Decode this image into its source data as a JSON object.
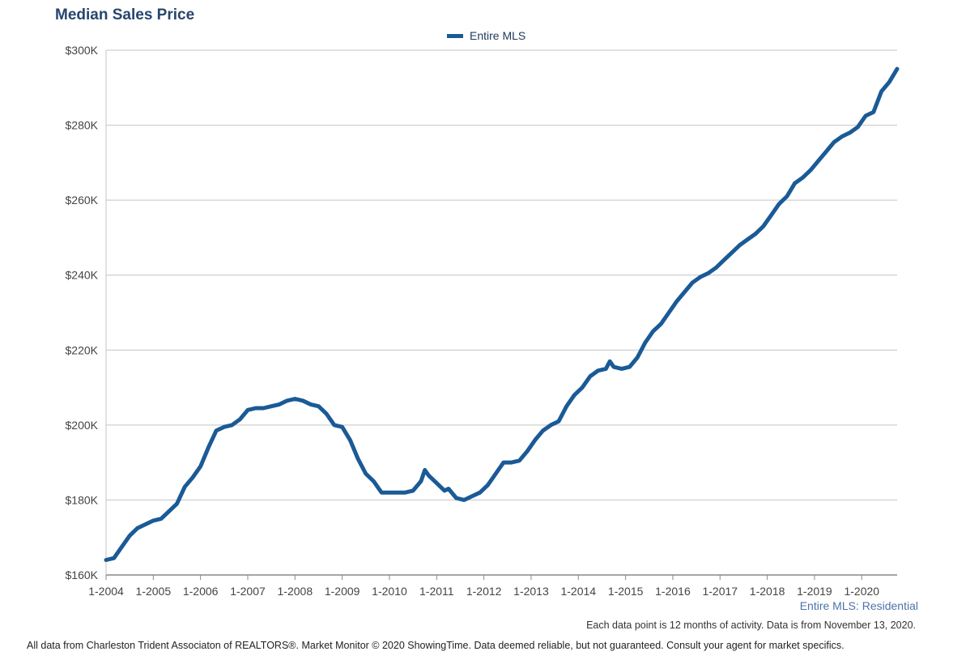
{
  "title": "Median Sales Price",
  "legend_label": "Entire MLS",
  "subtitle": "Entire MLS: Residential",
  "note": "Each data point is 12 months of activity. Data is from November 13, 2020.",
  "footer": "All data from Charleston Trident Associaton of REALTORS®. Market Monitor © 2020 ShowingTime. Data deemed reliable, but not guaranteed. Consult your agent for market specifics.",
  "colors": {
    "series": "#1a5a96",
    "grid": "#c4c4c4",
    "axis": "#888888",
    "tick_text": "#444444",
    "title": "#27466e"
  },
  "chart_data": {
    "type": "line",
    "ylim": [
      160,
      300
    ],
    "y_unit": "K USD",
    "y_ticks": [
      160,
      180,
      200,
      220,
      240,
      260,
      280,
      300
    ],
    "y_tick_labels": [
      "$160K",
      "$180K",
      "$200K",
      "$220K",
      "$240K",
      "$260K",
      "$280K",
      "$300K"
    ],
    "x_tick_labels": [
      "1-2004",
      "1-2005",
      "1-2006",
      "1-2007",
      "1-2008",
      "1-2009",
      "1-2010",
      "1-2011",
      "1-2012",
      "1-2013",
      "1-2014",
      "1-2015",
      "1-2016",
      "1-2017",
      "1-2018",
      "1-2019",
      "1-2020"
    ],
    "x_start": "1-2004",
    "x_end": "10-2020",
    "grid": true,
    "legend_position": "top-center",
    "series": [
      {
        "name": "Entire MLS",
        "points": [
          [
            "1-2004",
            164.0
          ],
          [
            "3-2004",
            164.5
          ],
          [
            "5-2004",
            167.5
          ],
          [
            "7-2004",
            170.5
          ],
          [
            "9-2004",
            172.5
          ],
          [
            "11-2004",
            173.5
          ],
          [
            "1-2005",
            174.5
          ],
          [
            "3-2005",
            175.0
          ],
          [
            "5-2005",
            177.0
          ],
          [
            "7-2005",
            179.0
          ],
          [
            "9-2005",
            183.5
          ],
          [
            "11-2005",
            186.0
          ],
          [
            "1-2006",
            189.0
          ],
          [
            "3-2006",
            194.0
          ],
          [
            "5-2006",
            198.5
          ],
          [
            "7-2006",
            199.5
          ],
          [
            "9-2006",
            200.0
          ],
          [
            "11-2006",
            201.5
          ],
          [
            "1-2007",
            204.0
          ],
          [
            "3-2007",
            204.5
          ],
          [
            "5-2007",
            204.5
          ],
          [
            "7-2007",
            205.0
          ],
          [
            "9-2007",
            205.5
          ],
          [
            "11-2007",
            206.5
          ],
          [
            "1-2008",
            207.0
          ],
          [
            "3-2008",
            206.5
          ],
          [
            "5-2008",
            205.5
          ],
          [
            "7-2008",
            205.0
          ],
          [
            "9-2008",
            203.0
          ],
          [
            "11-2008",
            200.0
          ],
          [
            "1-2009",
            199.5
          ],
          [
            "3-2009",
            196.0
          ],
          [
            "5-2009",
            191.0
          ],
          [
            "7-2009",
            187.0
          ],
          [
            "9-2009",
            185.0
          ],
          [
            "11-2009",
            182.0
          ],
          [
            "1-2010",
            182.0
          ],
          [
            "3-2010",
            182.0
          ],
          [
            "5-2010",
            182.0
          ],
          [
            "7-2010",
            182.5
          ],
          [
            "9-2010",
            185.0
          ],
          [
            "10-2010",
            188.0
          ],
          [
            "11-2010",
            186.5
          ],
          [
            "1-2011",
            184.5
          ],
          [
            "3-2011",
            182.5
          ],
          [
            "4-2011",
            183.0
          ],
          [
            "6-2011",
            180.5
          ],
          [
            "8-2011",
            180.0
          ],
          [
            "10-2011",
            181.0
          ],
          [
            "12-2011",
            182.0
          ],
          [
            "2-2012",
            184.0
          ],
          [
            "4-2012",
            187.0
          ],
          [
            "6-2012",
            190.0
          ],
          [
            "8-2012",
            190.0
          ],
          [
            "10-2012",
            190.5
          ],
          [
            "12-2012",
            193.0
          ],
          [
            "2-2013",
            196.0
          ],
          [
            "4-2013",
            198.5
          ],
          [
            "6-2013",
            200.0
          ],
          [
            "8-2013",
            201.0
          ],
          [
            "10-2013",
            205.0
          ],
          [
            "12-2013",
            208.0
          ],
          [
            "2-2014",
            210.0
          ],
          [
            "4-2014",
            213.0
          ],
          [
            "6-2014",
            214.5
          ],
          [
            "8-2014",
            215.0
          ],
          [
            "9-2014",
            217.0
          ],
          [
            "10-2014",
            215.5
          ],
          [
            "12-2014",
            215.0
          ],
          [
            "2-2015",
            215.5
          ],
          [
            "4-2015",
            218.0
          ],
          [
            "6-2015",
            222.0
          ],
          [
            "8-2015",
            225.0
          ],
          [
            "10-2015",
            227.0
          ],
          [
            "12-2015",
            230.0
          ],
          [
            "2-2016",
            233.0
          ],
          [
            "4-2016",
            235.5
          ],
          [
            "6-2016",
            238.0
          ],
          [
            "8-2016",
            239.5
          ],
          [
            "10-2016",
            240.5
          ],
          [
            "12-2016",
            242.0
          ],
          [
            "2-2017",
            244.0
          ],
          [
            "4-2017",
            246.0
          ],
          [
            "6-2017",
            248.0
          ],
          [
            "8-2017",
            249.5
          ],
          [
            "10-2017",
            251.0
          ],
          [
            "12-2017",
            253.0
          ],
          [
            "2-2018",
            256.0
          ],
          [
            "4-2018",
            259.0
          ],
          [
            "6-2018",
            261.0
          ],
          [
            "8-2018",
            264.5
          ],
          [
            "10-2018",
            266.0
          ],
          [
            "12-2018",
            268.0
          ],
          [
            "2-2019",
            270.5
          ],
          [
            "4-2019",
            273.0
          ],
          [
            "6-2019",
            275.5
          ],
          [
            "8-2019",
            277.0
          ],
          [
            "10-2019",
            278.0
          ],
          [
            "12-2019",
            279.5
          ],
          [
            "2-2020",
            282.5
          ],
          [
            "4-2020",
            283.5
          ],
          [
            "6-2020",
            289.0
          ],
          [
            "8-2020",
            291.5
          ],
          [
            "10-2020",
            295.0
          ]
        ]
      }
    ]
  }
}
